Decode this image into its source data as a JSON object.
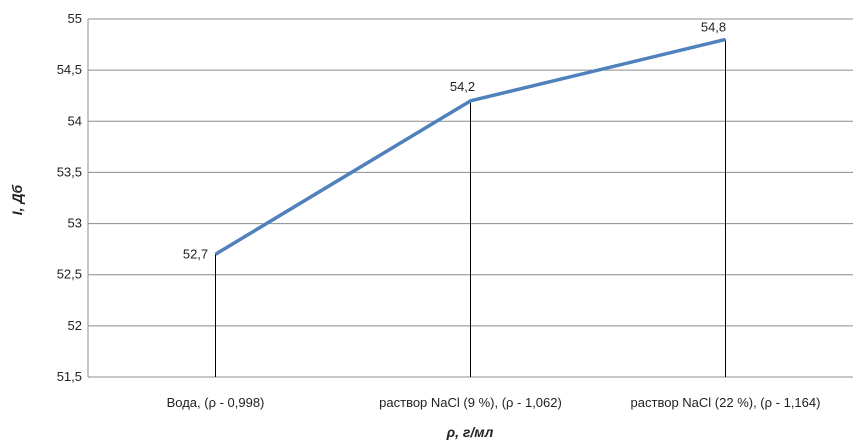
{
  "chart_data": {
    "type": "line",
    "categories": [
      "Вода, (ρ - 0,998)",
      "раствор NaCl (9 %), (ρ - 1,062)",
      "раствор NaCl (22 %), (ρ - 1,164)"
    ],
    "values": [
      52.7,
      54.2,
      54.8
    ],
    "data_labels": [
      "52,7",
      "54,2",
      "54,8"
    ],
    "xlabel": "ρ, г/мл",
    "ylabel": "I, Дб",
    "ylim": [
      51.5,
      55
    ],
    "yticks": [
      "51,5",
      "52",
      "52,5",
      "53",
      "53,5",
      "54",
      "54,5",
      "55"
    ],
    "ytick_values": [
      51.5,
      52,
      52.5,
      53,
      53.5,
      54,
      54.5,
      55
    ],
    "grid": true,
    "drop_lines": true,
    "line_color": "#4F81BD"
  }
}
